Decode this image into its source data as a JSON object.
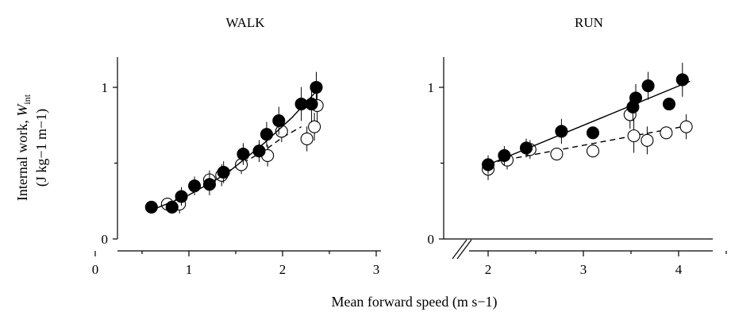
{
  "chart_data": [
    {
      "type": "scatter",
      "title": "WALK",
      "ylabel_line1": "Internal work, ",
      "ylabel_var": "W",
      "ylabel_sub": "int",
      "ylabel_line2": "(J kg−1 m−1)",
      "xlim": [
        0,
        3
      ],
      "ylim": [
        0,
        1.1
      ],
      "x_ticks": [
        "0",
        "1",
        "2",
        "3"
      ],
      "y_ticks": [
        "0",
        "1"
      ],
      "series": [
        {
          "marker": "filled-circle",
          "fit": "solid-curve",
          "points": [
            {
              "x": 0.6,
              "y": 0.21,
              "err": 0
            },
            {
              "x": 0.82,
              "y": 0.21,
              "err": 0
            },
            {
              "x": 0.92,
              "y": 0.28,
              "err": 0.02
            },
            {
              "x": 1.06,
              "y": 0.35,
              "err": 0.02
            },
            {
              "x": 1.22,
              "y": 0.36,
              "err": 0.03
            },
            {
              "x": 1.37,
              "y": 0.44,
              "err": 0.03
            },
            {
              "x": 1.58,
              "y": 0.56,
              "err": 0.03
            },
            {
              "x": 1.75,
              "y": 0.58,
              "err": 0.03
            },
            {
              "x": 1.83,
              "y": 0.69,
              "err": 0.04
            },
            {
              "x": 1.96,
              "y": 0.78,
              "err": 0.05
            },
            {
              "x": 2.2,
              "y": 0.89,
              "err": 0.07
            },
            {
              "x": 2.31,
              "y": 0.89,
              "err": 0.08
            },
            {
              "x": 2.36,
              "y": 1.0,
              "err": 0.06
            }
          ],
          "fit_points": [
            [
              0.6,
              0.19
            ],
            [
              1.0,
              0.29
            ],
            [
              1.4,
              0.43
            ],
            [
              1.8,
              0.63
            ],
            [
              2.1,
              0.8
            ],
            [
              2.37,
              0.98
            ]
          ]
        },
        {
          "marker": "open-circle",
          "fit": "dashed-curve",
          "points": [
            {
              "x": 0.77,
              "y": 0.23,
              "err": 0
            },
            {
              "x": 0.9,
              "y": 0.23,
              "err": 0.02
            },
            {
              "x": 1.22,
              "y": 0.39,
              "err": 0.02
            },
            {
              "x": 1.35,
              "y": 0.42,
              "err": 0.03
            },
            {
              "x": 1.56,
              "y": 0.49,
              "err": 0.02
            },
            {
              "x": 1.84,
              "y": 0.55,
              "err": 0.03
            },
            {
              "x": 1.99,
              "y": 0.71,
              "err": 0.03
            },
            {
              "x": 2.26,
              "y": 0.66,
              "err": 0.04
            },
            {
              "x": 2.34,
              "y": 0.74,
              "err": 0.05
            },
            {
              "x": 2.37,
              "y": 0.88,
              "err": 0.07
            }
          ],
          "fit_points": [
            [
              1.4,
              0.44
            ],
            [
              1.6,
              0.51
            ],
            [
              1.8,
              0.58
            ],
            [
              2.0,
              0.67
            ],
            [
              2.2,
              0.74
            ]
          ]
        }
      ]
    },
    {
      "type": "scatter",
      "title": "RUN",
      "xlim": [
        1.25,
        4.6
      ],
      "ylim": [
        0,
        1.1
      ],
      "x_ticks": [
        "2",
        "3",
        "4"
      ],
      "y_ticks": [
        "0",
        "1"
      ],
      "axis_break": true,
      "series": [
        {
          "marker": "filled-circle",
          "fit": "solid-line",
          "points": [
            {
              "x": 2.0,
              "y": 0.49,
              "err": 0.02
            },
            {
              "x": 2.17,
              "y": 0.55,
              "err": 0.02
            },
            {
              "x": 2.4,
              "y": 0.6,
              "err": 0.02
            },
            {
              "x": 2.77,
              "y": 0.71,
              "err": 0.04
            },
            {
              "x": 3.1,
              "y": 0.7,
              "err": 0
            },
            {
              "x": 3.52,
              "y": 0.87,
              "err": 0.05
            },
            {
              "x": 3.55,
              "y": 0.93,
              "err": 0.05
            },
            {
              "x": 3.68,
              "y": 1.01,
              "err": 0.05
            },
            {
              "x": 3.9,
              "y": 0.89,
              "err": 0
            },
            {
              "x": 4.04,
              "y": 1.05,
              "err": 0.07
            }
          ],
          "fit_points": [
            [
              2.0,
              0.49
            ],
            [
              4.12,
              1.04
            ]
          ]
        },
        {
          "marker": "open-circle",
          "fit": "dashed-line",
          "points": [
            {
              "x": 2.0,
              "y": 0.46,
              "err": 0.03
            },
            {
              "x": 2.2,
              "y": 0.52,
              "err": 0.02
            },
            {
              "x": 2.44,
              "y": 0.59,
              "err": 0.02
            },
            {
              "x": 2.72,
              "y": 0.56,
              "err": 0
            },
            {
              "x": 3.1,
              "y": 0.58,
              "err": 0
            },
            {
              "x": 3.49,
              "y": 0.82,
              "err": 0.05
            },
            {
              "x": 3.53,
              "y": 0.68,
              "err": 0.07
            },
            {
              "x": 3.67,
              "y": 0.65,
              "err": 0.05
            },
            {
              "x": 3.87,
              "y": 0.7,
              "err": 0
            },
            {
              "x": 4.08,
              "y": 0.74,
              "err": 0.04
            }
          ],
          "fit_points": [
            [
              2.0,
              0.5
            ],
            [
              4.12,
              0.75
            ]
          ]
        }
      ]
    }
  ],
  "shared_xlabel": "Mean forward speed (m s−1)"
}
